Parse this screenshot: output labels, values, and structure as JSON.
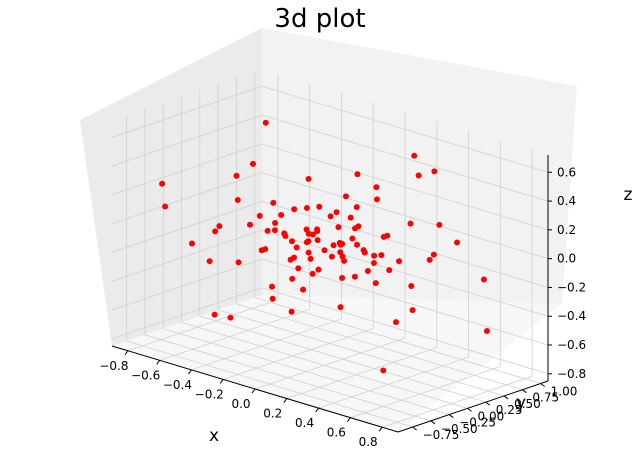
{
  "chart_data": {
    "type": "scatter",
    "title": "3d plot",
    "xlabel": "x",
    "ylabel": "y",
    "zlabel": "z",
    "xlim": [
      -0.9,
      0.9
    ],
    "ylim": [
      -0.95,
      1.1
    ],
    "zlim": [
      -0.85,
      0.72
    ],
    "xticks": [
      "−0.8",
      "−0.6",
      "−0.4",
      "−0.2",
      "0.0",
      "0.2",
      "0.4",
      "0.6",
      "0.8"
    ],
    "yticks": [
      "−0.75",
      "−0.50",
      "−0.25",
      "0.00",
      "0.25",
      "0.50",
      "0.75",
      "1.00"
    ],
    "zticks": [
      "−0.8",
      "−0.6",
      "−0.4",
      "−0.2",
      "0.0",
      "0.2",
      "0.4",
      "0.6"
    ],
    "marker_color": "#ff0000",
    "grid": true,
    "pane_colors": {
      "left": "#ebebeb",
      "back": "#f2f2f2",
      "floor": "#f7f7f7"
    },
    "points": [
      [
        0.0,
        0.0,
        -0.05
      ],
      [
        0.05,
        0.1,
        0.0
      ],
      [
        -0.05,
        -0.05,
        0.05
      ],
      [
        0.1,
        0.05,
        -0.1
      ],
      [
        -0.1,
        0.0,
        -0.1
      ],
      [
        0.0,
        -0.1,
        0.1
      ],
      [
        0.08,
        -0.05,
        0.02
      ],
      [
        -0.08,
        0.08,
        -0.02
      ],
      [
        0.12,
        0.12,
        0.05
      ],
      [
        -0.12,
        -0.12,
        -0.05
      ],
      [
        0.03,
        0.15,
        -0.08
      ],
      [
        -0.03,
        -0.15,
        0.08
      ],
      [
        0.15,
        -0.08,
        -0.03
      ],
      [
        -0.15,
        0.08,
        0.03
      ],
      [
        0.06,
        0.06,
        0.12
      ],
      [
        -0.06,
        -0.06,
        -0.12
      ],
      [
        0.2,
        0.1,
        0.0
      ],
      [
        -0.2,
        -0.1,
        0.0
      ],
      [
        0.1,
        0.2,
        0.1
      ],
      [
        -0.1,
        -0.2,
        -0.1
      ],
      [
        0.0,
        0.22,
        -0.05
      ],
      [
        0.0,
        -0.22,
        0.05
      ],
      [
        0.18,
        -0.15,
        0.08
      ],
      [
        -0.18,
        0.15,
        -0.08
      ],
      [
        0.25,
        0.05,
        -0.12
      ],
      [
        -0.25,
        -0.05,
        0.12
      ],
      [
        0.05,
        0.25,
        0.15
      ],
      [
        -0.05,
        -0.25,
        -0.15
      ],
      [
        0.22,
        0.2,
        -0.05
      ],
      [
        -0.22,
        -0.2,
        0.05
      ],
      [
        0.3,
        -0.1,
        0.05
      ],
      [
        -0.3,
        0.1,
        -0.05
      ],
      [
        0.1,
        -0.3,
        -0.1
      ],
      [
        -0.1,
        0.3,
        0.1
      ],
      [
        0.28,
        0.25,
        0.1
      ],
      [
        -0.28,
        -0.25,
        -0.1
      ],
      [
        0.35,
        0.05,
        0.15
      ],
      [
        -0.35,
        -0.05,
        -0.15
      ],
      [
        0.15,
        0.35,
        -0.15
      ],
      [
        -0.15,
        -0.35,
        0.15
      ],
      [
        0.32,
        -0.28,
        -0.08
      ],
      [
        -0.32,
        0.28,
        0.08
      ],
      [
        0.4,
        0.15,
        -0.02
      ],
      [
        -0.4,
        -0.15,
        0.02
      ],
      [
        0.02,
        0.42,
        0.05
      ],
      [
        -0.02,
        -0.42,
        -0.05
      ],
      [
        0.38,
        0.35,
        0.2
      ],
      [
        -0.38,
        -0.35,
        -0.2
      ],
      [
        0.45,
        -0.2,
        0.1
      ],
      [
        -0.45,
        0.2,
        -0.1
      ],
      [
        0.2,
        0.45,
        -0.2
      ],
      [
        -0.2,
        -0.45,
        0.2
      ],
      [
        0.5,
        0.1,
        -0.15
      ],
      [
        -0.5,
        -0.1,
        0.15
      ],
      [
        0.1,
        0.5,
        0.25
      ],
      [
        -0.1,
        -0.5,
        -0.25
      ],
      [
        0.55,
        0.3,
        0.05
      ],
      [
        -0.55,
        -0.3,
        -0.05
      ],
      [
        0.3,
        -0.55,
        0.1
      ],
      [
        -0.3,
        0.55,
        -0.1
      ],
      [
        0.6,
        -0.1,
        -0.25
      ],
      [
        -0.6,
        0.1,
        0.25
      ],
      [
        0.05,
        0.6,
        0.3
      ],
      [
        -0.05,
        -0.6,
        -0.3
      ],
      [
        0.65,
        0.4,
        0.15
      ],
      [
        -0.65,
        -0.4,
        -0.15
      ],
      [
        0.4,
        -0.65,
        -0.2
      ],
      [
        -0.4,
        0.65,
        0.2
      ],
      [
        0.7,
        0.05,
        0.35
      ],
      [
        -0.7,
        -0.05,
        -0.35
      ],
      [
        0.0,
        0.7,
        -0.4
      ],
      [
        0.0,
        -0.7,
        0.4
      ],
      [
        0.75,
        0.55,
        -0.1
      ],
      [
        -0.75,
        -0.55,
        0.1
      ],
      [
        0.55,
        -0.75,
        0.3
      ],
      [
        -0.55,
        0.75,
        -0.3
      ],
      [
        0.8,
        -0.3,
        0.2
      ],
      [
        -0.8,
        0.3,
        -0.2
      ],
      [
        0.3,
        0.85,
        0.45
      ],
      [
        -0.3,
        -0.85,
        -0.45
      ],
      [
        0.15,
        0.9,
        0.5
      ],
      [
        -0.7,
        -0.7,
        0.3
      ],
      [
        0.7,
        0.7,
        -0.5
      ],
      [
        -0.6,
        0.5,
        0.55
      ],
      [
        0.6,
        -0.5,
        -0.6
      ],
      [
        0.5,
        0.2,
        0.6
      ],
      [
        -0.5,
        -0.2,
        -0.65
      ],
      [
        0.25,
        -0.25,
        0.45
      ],
      [
        -0.25,
        0.25,
        -0.45
      ],
      [
        0.45,
        0.0,
        -0.4
      ],
      [
        -0.45,
        0.0,
        0.4
      ],
      [
        0.0,
        0.45,
        0.4
      ],
      [
        0.0,
        -0.45,
        -0.4
      ],
      [
        0.18,
        0.05,
        0.3
      ],
      [
        -0.18,
        -0.05,
        -0.3
      ],
      [
        0.05,
        -0.18,
        0.3
      ],
      [
        0.12,
        -0.02,
        -0.2
      ],
      [
        -0.12,
        0.02,
        0.2
      ],
      [
        0.02,
        0.12,
        0.2
      ],
      [
        -0.02,
        -0.12,
        -0.2
      ]
    ]
  }
}
